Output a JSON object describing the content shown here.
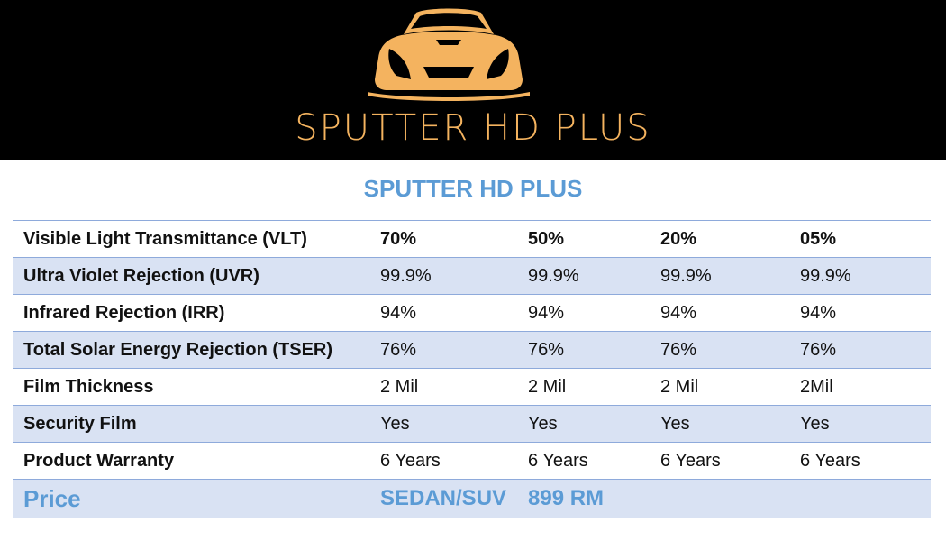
{
  "banner": {
    "logo_icon": "sports-car-front-icon",
    "brand_name": "SPUTTER HD PLUS",
    "colors": {
      "background": "#000000",
      "accent": "#f4b35f"
    }
  },
  "table": {
    "title": "SPUTTER HD PLUS",
    "header": {
      "label": "Visible Light Transmittance (VLT)",
      "values": [
        "70%",
        "50%",
        "20%",
        "05%"
      ]
    },
    "rows": [
      {
        "label": "Ultra Violet Rejection (UVR)",
        "values": [
          "99.9%",
          "99.9%",
          "99.9%",
          "99.9%"
        ]
      },
      {
        "label": "Infrared Rejection (IRR)",
        "values": [
          "94%",
          "94%",
          "94%",
          "94%"
        ]
      },
      {
        "label": "Total Solar Energy Rejection (TSER)",
        "values": [
          "76%",
          "76%",
          "76%",
          "76%"
        ]
      },
      {
        "label": "Film Thickness",
        "values": [
          "2 Mil",
          "2 Mil",
          "2 Mil",
          "2Mil"
        ]
      },
      {
        "label": "Security Film",
        "values": [
          "Yes",
          "Yes",
          "Yes",
          "Yes"
        ]
      },
      {
        "label": "Product Warranty",
        "values": [
          "6 Years",
          "6 Years",
          "6 Years",
          "6 Years"
        ]
      }
    ],
    "price": {
      "label": "Price",
      "vehicle": "SEDAN/SUV",
      "amount": "899 RM"
    },
    "colors": {
      "title": "#5b9bd5",
      "shade": "#d9e2f3",
      "rule": "#8eaadb"
    }
  }
}
